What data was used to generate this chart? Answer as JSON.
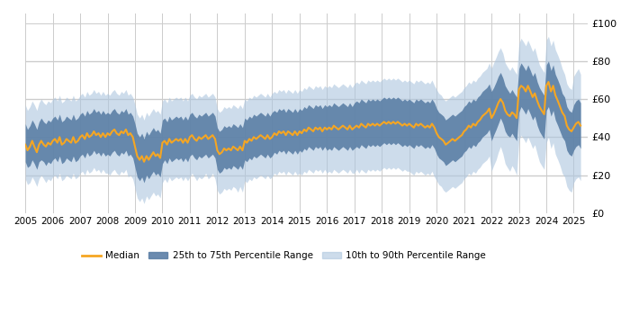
{
  "ylabel_right_ticks": [
    0,
    20,
    40,
    60,
    80,
    100
  ],
  "ylabel_right_labels": [
    "£0",
    "£20",
    "£40",
    "£60",
    "£80",
    "£100"
  ],
  "x_start_year": 2005,
  "x_end_year": 2025.5,
  "x_tick_years": [
    2005,
    2006,
    2007,
    2008,
    2009,
    2010,
    2011,
    2012,
    2013,
    2014,
    2015,
    2016,
    2017,
    2018,
    2019,
    2020,
    2021,
    2022,
    2023,
    2024,
    2025
  ],
  "median_color": "#f5a623",
  "band_25_75_color": "#5b7fa6",
  "band_10_90_color": "#adc6df",
  "band_25_75_alpha": 0.9,
  "band_10_90_alpha": 0.6,
  "background_color": "#ffffff",
  "grid_color": "#cccccc",
  "legend_labels": [
    "Median",
    "25th to 75th Percentile Range",
    "10th to 90th Percentile Range"
  ],
  "ts": [
    2005.0,
    2005.08,
    2005.17,
    2005.25,
    2005.33,
    2005.42,
    2005.5,
    2005.58,
    2005.67,
    2005.75,
    2005.83,
    2005.92,
    2006.0,
    2006.08,
    2006.17,
    2006.25,
    2006.33,
    2006.42,
    2006.5,
    2006.58,
    2006.67,
    2006.75,
    2006.83,
    2006.92,
    2007.0,
    2007.08,
    2007.17,
    2007.25,
    2007.33,
    2007.42,
    2007.5,
    2007.58,
    2007.67,
    2007.75,
    2007.83,
    2007.92,
    2008.0,
    2008.08,
    2008.17,
    2008.25,
    2008.33,
    2008.42,
    2008.5,
    2008.58,
    2008.67,
    2008.75,
    2008.83,
    2008.92,
    2009.0,
    2009.08,
    2009.17,
    2009.25,
    2009.33,
    2009.42,
    2009.5,
    2009.58,
    2009.67,
    2009.75,
    2009.83,
    2009.92,
    2010.0,
    2010.08,
    2010.17,
    2010.25,
    2010.33,
    2010.42,
    2010.5,
    2010.58,
    2010.67,
    2010.75,
    2010.83,
    2010.92,
    2011.0,
    2011.08,
    2011.17,
    2011.25,
    2011.33,
    2011.42,
    2011.5,
    2011.58,
    2011.67,
    2011.75,
    2011.83,
    2011.92,
    2012.0,
    2012.08,
    2012.17,
    2012.25,
    2012.33,
    2012.42,
    2012.5,
    2012.58,
    2012.67,
    2012.75,
    2012.83,
    2012.92,
    2013.0,
    2013.08,
    2013.17,
    2013.25,
    2013.33,
    2013.42,
    2013.5,
    2013.58,
    2013.67,
    2013.75,
    2013.83,
    2013.92,
    2014.0,
    2014.08,
    2014.17,
    2014.25,
    2014.33,
    2014.42,
    2014.5,
    2014.58,
    2014.67,
    2014.75,
    2014.83,
    2014.92,
    2015.0,
    2015.08,
    2015.17,
    2015.25,
    2015.33,
    2015.42,
    2015.5,
    2015.58,
    2015.67,
    2015.75,
    2015.83,
    2015.92,
    2016.0,
    2016.08,
    2016.17,
    2016.25,
    2016.33,
    2016.42,
    2016.5,
    2016.58,
    2016.67,
    2016.75,
    2016.83,
    2016.92,
    2017.0,
    2017.08,
    2017.17,
    2017.25,
    2017.33,
    2017.42,
    2017.5,
    2017.58,
    2017.67,
    2017.75,
    2017.83,
    2017.92,
    2018.0,
    2018.08,
    2018.17,
    2018.25,
    2018.33,
    2018.42,
    2018.5,
    2018.58,
    2018.67,
    2018.75,
    2018.83,
    2018.92,
    2019.0,
    2019.08,
    2019.17,
    2019.25,
    2019.33,
    2019.42,
    2019.5,
    2019.58,
    2019.67,
    2019.75,
    2019.83,
    2019.92,
    2020.0,
    2020.08,
    2020.17,
    2020.25,
    2020.33,
    2020.42,
    2020.5,
    2020.58,
    2020.67,
    2020.75,
    2020.83,
    2020.92,
    2021.0,
    2021.08,
    2021.17,
    2021.25,
    2021.33,
    2021.42,
    2021.5,
    2021.58,
    2021.67,
    2021.75,
    2021.83,
    2021.92,
    2022.0,
    2022.08,
    2022.17,
    2022.25,
    2022.33,
    2022.42,
    2022.5,
    2022.58,
    2022.67,
    2022.75,
    2022.83,
    2022.92,
    2023.0,
    2023.08,
    2023.17,
    2023.25,
    2023.33,
    2023.42,
    2023.5,
    2023.58,
    2023.67,
    2023.75,
    2023.83,
    2023.92,
    2024.0,
    2024.08,
    2024.17,
    2024.25,
    2024.33,
    2024.42,
    2024.5,
    2024.58,
    2024.67,
    2024.75,
    2024.83,
    2024.92,
    2025.0,
    2025.08,
    2025.17,
    2025.25
  ],
  "median": [
    36,
    33,
    35,
    38,
    35,
    32,
    36,
    38,
    36,
    35,
    37,
    36,
    38,
    39,
    37,
    40,
    36,
    37,
    39,
    38,
    37,
    40,
    37,
    38,
    40,
    41,
    39,
    42,
    40,
    41,
    43,
    41,
    42,
    40,
    42,
    40,
    42,
    41,
    43,
    44,
    42,
    41,
    43,
    42,
    44,
    41,
    42,
    40,
    35,
    30,
    28,
    30,
    27,
    30,
    28,
    30,
    32,
    30,
    31,
    29,
    37,
    38,
    36,
    39,
    37,
    38,
    39,
    38,
    39,
    37,
    39,
    37,
    40,
    41,
    39,
    38,
    40,
    39,
    40,
    41,
    39,
    40,
    41,
    39,
    33,
    31,
    32,
    34,
    33,
    34,
    33,
    35,
    34,
    33,
    35,
    33,
    38,
    37,
    39,
    38,
    40,
    39,
    40,
    41,
    40,
    39,
    41,
    39,
    40,
    42,
    41,
    43,
    42,
    43,
    41,
    43,
    42,
    41,
    43,
    41,
    43,
    42,
    44,
    43,
    45,
    44,
    43,
    45,
    44,
    45,
    43,
    45,
    44,
    45,
    44,
    46,
    45,
    44,
    45,
    46,
    45,
    44,
    46,
    44,
    45,
    46,
    45,
    47,
    46,
    45,
    47,
    46,
    47,
    46,
    47,
    46,
    47,
    48,
    47,
    48,
    47,
    48,
    47,
    48,
    47,
    46,
    47,
    46,
    47,
    46,
    45,
    47,
    46,
    47,
    46,
    45,
    46,
    45,
    47,
    45,
    42,
    40,
    39,
    38,
    36,
    37,
    38,
    39,
    38,
    39,
    40,
    41,
    43,
    44,
    46,
    45,
    47,
    46,
    48,
    49,
    51,
    52,
    53,
    55,
    50,
    52,
    55,
    58,
    60,
    58,
    54,
    52,
    51,
    53,
    52,
    50,
    65,
    67,
    66,
    64,
    67,
    64,
    61,
    63,
    59,
    56,
    54,
    52,
    67,
    69,
    64,
    67,
    62,
    59,
    56,
    53,
    51,
    46,
    44,
    43,
    45,
    47,
    48,
    46
  ],
  "p25": [
    27,
    24,
    25,
    28,
    26,
    23,
    27,
    28,
    27,
    25,
    27,
    26,
    28,
    29,
    27,
    30,
    26,
    27,
    29,
    28,
    27,
    30,
    27,
    28,
    30,
    31,
    29,
    32,
    30,
    31,
    33,
    31,
    32,
    30,
    32,
    30,
    31,
    30,
    32,
    33,
    31,
    30,
    32,
    31,
    33,
    30,
    31,
    29,
    24,
    19,
    17,
    19,
    16,
    20,
    18,
    20,
    22,
    20,
    21,
    19,
    26,
    28,
    26,
    29,
    27,
    28,
    29,
    28,
    29,
    27,
    29,
    27,
    30,
    31,
    29,
    28,
    30,
    29,
    30,
    31,
    29,
    30,
    31,
    29,
    23,
    21,
    22,
    24,
    23,
    24,
    23,
    25,
    24,
    23,
    25,
    23,
    28,
    27,
    29,
    28,
    30,
    29,
    30,
    31,
    30,
    29,
    31,
    29,
    30,
    32,
    31,
    33,
    32,
    33,
    31,
    33,
    32,
    31,
    33,
    31,
    33,
    32,
    34,
    33,
    35,
    34,
    33,
    35,
    34,
    35,
    33,
    35,
    33,
    34,
    33,
    35,
    34,
    33,
    34,
    35,
    34,
    33,
    35,
    33,
    34,
    35,
    34,
    36,
    35,
    34,
    36,
    35,
    36,
    35,
    36,
    35,
    36,
    37,
    36,
    37,
    36,
    37,
    36,
    37,
    36,
    35,
    36,
    35,
    36,
    35,
    34,
    36,
    35,
    36,
    35,
    34,
    35,
    34,
    36,
    34,
    31,
    29,
    28,
    27,
    25,
    26,
    27,
    28,
    27,
    28,
    29,
    30,
    32,
    33,
    35,
    34,
    36,
    35,
    37,
    38,
    40,
    41,
    42,
    44,
    38,
    41,
    44,
    47,
    50,
    47,
    43,
    41,
    40,
    42,
    40,
    38,
    53,
    56,
    54,
    52,
    55,
    52,
    49,
    51,
    46,
    43,
    41,
    39,
    54,
    56,
    51,
    54,
    49,
    46,
    43,
    40,
    38,
    33,
    31,
    30,
    33,
    35,
    36,
    34
  ],
  "p75": [
    47,
    44,
    46,
    49,
    47,
    44,
    48,
    50,
    48,
    47,
    49,
    48,
    50,
    51,
    49,
    52,
    48,
    49,
    51,
    50,
    49,
    52,
    49,
    50,
    52,
    53,
    51,
    54,
    52,
    53,
    55,
    53,
    54,
    52,
    54,
    52,
    53,
    52,
    54,
    55,
    53,
    52,
    54,
    53,
    55,
    52,
    53,
    51,
    47,
    42,
    40,
    42,
    39,
    43,
    41,
    43,
    45,
    43,
    44,
    42,
    49,
    50,
    48,
    51,
    49,
    50,
    51,
    50,
    51,
    49,
    51,
    49,
    52,
    53,
    51,
    50,
    52,
    51,
    52,
    53,
    51,
    52,
    53,
    51,
    45,
    43,
    44,
    46,
    45,
    46,
    45,
    47,
    46,
    45,
    47,
    45,
    50,
    49,
    51,
    50,
    52,
    51,
    52,
    53,
    52,
    51,
    53,
    51,
    53,
    54,
    53,
    55,
    54,
    55,
    53,
    55,
    54,
    53,
    55,
    53,
    55,
    54,
    56,
    55,
    57,
    56,
    55,
    57,
    56,
    57,
    55,
    57,
    56,
    57,
    56,
    58,
    57,
    56,
    57,
    58,
    57,
    56,
    58,
    56,
    58,
    59,
    58,
    60,
    59,
    58,
    60,
    59,
    60,
    59,
    60,
    59,
    60,
    61,
    60,
    61,
    60,
    61,
    60,
    61,
    60,
    59,
    60,
    59,
    60,
    59,
    58,
    60,
    59,
    60,
    59,
    58,
    59,
    58,
    60,
    58,
    55,
    53,
    52,
    51,
    49,
    50,
    51,
    52,
    51,
    52,
    53,
    54,
    56,
    57,
    59,
    58,
    60,
    59,
    61,
    62,
    64,
    65,
    66,
    68,
    64,
    66,
    69,
    72,
    74,
    71,
    67,
    65,
    63,
    65,
    63,
    61,
    76,
    79,
    77,
    75,
    78,
    75,
    72,
    74,
    69,
    66,
    64,
    62,
    78,
    80,
    75,
    78,
    73,
    70,
    67,
    63,
    61,
    56,
    54,
    53,
    57,
    59,
    60,
    58
  ],
  "p10": [
    18,
    15,
    16,
    19,
    17,
    14,
    18,
    20,
    18,
    16,
    18,
    17,
    19,
    20,
    18,
    21,
    17,
    18,
    20,
    19,
    18,
    21,
    18,
    19,
    21,
    22,
    20,
    23,
    21,
    22,
    24,
    22,
    23,
    21,
    23,
    21,
    21,
    20,
    22,
    23,
    21,
    20,
    22,
    21,
    23,
    19,
    20,
    18,
    13,
    8,
    6,
    8,
    5,
    9,
    7,
    9,
    11,
    9,
    10,
    8,
    16,
    18,
    16,
    19,
    17,
    18,
    19,
    18,
    19,
    17,
    19,
    17,
    19,
    21,
    19,
    17,
    19,
    18,
    19,
    21,
    18,
    19,
    21,
    18,
    12,
    10,
    11,
    13,
    12,
    13,
    12,
    14,
    13,
    11,
    14,
    11,
    17,
    16,
    18,
    17,
    19,
    18,
    19,
    20,
    19,
    18,
    20,
    18,
    19,
    21,
    20,
    22,
    21,
    22,
    20,
    22,
    21,
    20,
    22,
    20,
    21,
    20,
    22,
    21,
    23,
    22,
    21,
    23,
    22,
    23,
    21,
    23,
    21,
    22,
    21,
    23,
    22,
    21,
    22,
    23,
    22,
    21,
    23,
    21,
    21,
    23,
    21,
    23,
    22,
    21,
    23,
    22,
    23,
    22,
    23,
    22,
    23,
    24,
    23,
    24,
    23,
    24,
    23,
    24,
    23,
    22,
    23,
    22,
    22,
    21,
    20,
    22,
    21,
    22,
    21,
    20,
    21,
    20,
    22,
    19,
    17,
    15,
    14,
    12,
    11,
    12,
    13,
    14,
    13,
    14,
    15,
    16,
    18,
    19,
    21,
    20,
    22,
    21,
    23,
    24,
    26,
    27,
    28,
    30,
    22,
    25,
    28,
    32,
    35,
    31,
    26,
    24,
    22,
    25,
    23,
    20,
    38,
    41,
    39,
    37,
    40,
    37,
    34,
    36,
    31,
    27,
    25,
    23,
    37,
    40,
    34,
    37,
    31,
    28,
    25,
    21,
    19,
    14,
    12,
    11,
    16,
    18,
    19,
    17
  ],
  "p90": [
    57,
    54,
    56,
    59,
    57,
    54,
    58,
    60,
    58,
    57,
    59,
    58,
    60,
    61,
    59,
    62,
    58,
    59,
    61,
    60,
    59,
    62,
    59,
    60,
    62,
    63,
    61,
    64,
    62,
    63,
    65,
    63,
    64,
    62,
    64,
    62,
    63,
    62,
    64,
    65,
    63,
    62,
    64,
    63,
    65,
    62,
    63,
    61,
    57,
    52,
    50,
    52,
    49,
    53,
    51,
    53,
    55,
    53,
    54,
    52,
    59,
    60,
    58,
    61,
    59,
    60,
    61,
    60,
    61,
    59,
    61,
    59,
    62,
    63,
    61,
    60,
    62,
    61,
    62,
    63,
    61,
    62,
    63,
    61,
    55,
    53,
    54,
    56,
    55,
    56,
    55,
    57,
    56,
    55,
    57,
    55,
    60,
    59,
    61,
    60,
    62,
    61,
    62,
    63,
    62,
    61,
    63,
    61,
    63,
    64,
    63,
    65,
    64,
    65,
    63,
    65,
    64,
    63,
    65,
    63,
    65,
    64,
    66,
    65,
    67,
    66,
    65,
    67,
    66,
    67,
    65,
    67,
    66,
    67,
    66,
    68,
    67,
    66,
    67,
    68,
    67,
    66,
    68,
    66,
    68,
    69,
    68,
    70,
    69,
    68,
    70,
    69,
    70,
    69,
    70,
    69,
    70,
    71,
    70,
    71,
    70,
    71,
    70,
    71,
    70,
    69,
    70,
    69,
    70,
    69,
    68,
    70,
    69,
    70,
    69,
    68,
    69,
    68,
    70,
    67,
    65,
    63,
    62,
    60,
    59,
    60,
    61,
    62,
    61,
    62,
    63,
    64,
    66,
    67,
    69,
    68,
    70,
    69,
    71,
    72,
    74,
    75,
    76,
    79,
    76,
    79,
    82,
    85,
    87,
    84,
    79,
    77,
    75,
    77,
    75,
    73,
    89,
    92,
    90,
    88,
    91,
    88,
    85,
    87,
    82,
    78,
    76,
    74,
    91,
    93,
    88,
    91,
    86,
    83,
    80,
    76,
    73,
    68,
    66,
    65,
    72,
    74,
    76,
    73
  ]
}
